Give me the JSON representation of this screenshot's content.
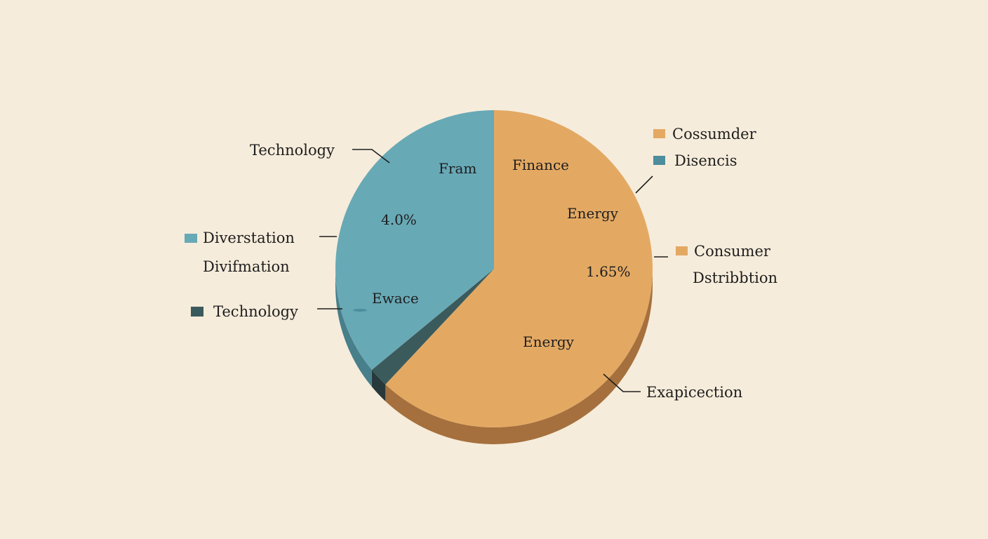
{
  "chart_data": {
    "type": "pie",
    "title": "",
    "slices": [
      {
        "name": "Finance",
        "share": 0.62,
        "color": "#e3a963",
        "side_color": "#a5703d"
      },
      {
        "name": "Technology",
        "share": 0.02,
        "color": "#3b5a5c",
        "side_color": "#27393b"
      },
      {
        "name": "Diverstation",
        "share": 0.36,
        "color": "#68a9b6",
        "side_color": "#477f8b"
      }
    ],
    "slice_labels": [
      "Fram",
      "Finance",
      "4.0%",
      "Energy",
      "1.65%",
      "Ewace",
      "Energy"
    ],
    "callouts": [
      "Technology",
      "Exapicection"
    ],
    "legend": [
      {
        "text": "Cossumder",
        "color": "#e3a963"
      },
      {
        "text": "Disencis",
        "color": "#4d8d9c"
      },
      {
        "text": "Consumer",
        "color": "#e3a963"
      },
      {
        "text": "Dstribbtion",
        "color": null
      },
      {
        "text": "Diverstation",
        "color": "#68a9b6"
      },
      {
        "text": "Divifmation",
        "color": null
      },
      {
        "text": "Technology",
        "color": "#3b5a5c"
      }
    ]
  }
}
